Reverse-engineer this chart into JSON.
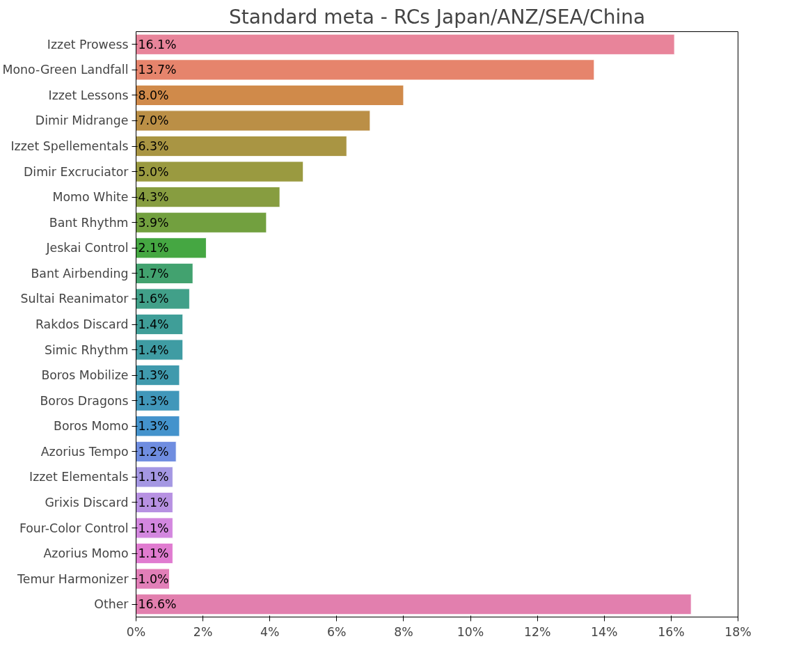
{
  "chart_data": {
    "type": "bar",
    "orientation": "horizontal",
    "title": "Standard meta - RCs Japan/ANZ/SEA/China",
    "categories": [
      "Izzet Prowess",
      "Mono-Green Landfall",
      "Izzet Lessons",
      "Dimir Midrange",
      "Izzet Spellementals",
      "Dimir Excruciator",
      "Momo White",
      "Bant Rhythm",
      "Jeskai Control",
      "Bant Airbending",
      "Sultai Reanimator",
      "Rakdos Discard",
      "Simic Rhythm",
      "Boros Mobilize",
      "Boros Dragons",
      "Boros Momo",
      "Azorius Tempo",
      "Izzet Elementals",
      "Grixis Discard",
      "Four-Color Control",
      "Azorius Momo",
      "Temur Harmonizer",
      "Other"
    ],
    "values": [
      16.1,
      13.7,
      8.0,
      7.0,
      6.3,
      5.0,
      4.3,
      3.9,
      2.1,
      1.7,
      1.6,
      1.4,
      1.4,
      1.3,
      1.3,
      1.3,
      1.2,
      1.1,
      1.1,
      1.1,
      1.1,
      1.0,
      16.6
    ],
    "value_labels": [
      "16.1%",
      "13.7%",
      "8.0%",
      "7.0%",
      "6.3%",
      "5.0%",
      "4.3%",
      "3.9%",
      "2.1%",
      "1.7%",
      "1.6%",
      "1.4%",
      "1.4%",
      "1.3%",
      "1.3%",
      "1.3%",
      "1.2%",
      "1.1%",
      "1.1%",
      "1.1%",
      "1.1%",
      "1.0%",
      "16.6%"
    ],
    "colors": [
      "#e8849a",
      "#e6846c",
      "#d08a4a",
      "#bb8f46",
      "#a99543",
      "#9a9a40",
      "#879d40",
      "#72a03f",
      "#45a742",
      "#42a26f",
      "#41a089",
      "#3f9e98",
      "#3f9ca3",
      "#409aad",
      "#4197ba",
      "#4493cc",
      "#6f8de0",
      "#a497e3",
      "#b791e2",
      "#d387df",
      "#e07bd0",
      "#e27fb8",
      "#e27fae"
    ],
    "xlim": [
      0,
      18
    ],
    "xticks": [
      {
        "value": 0,
        "label": "0%"
      },
      {
        "value": 2,
        "label": "2%"
      },
      {
        "value": 4,
        "label": "4%"
      },
      {
        "value": 6,
        "label": "6%"
      },
      {
        "value": 8,
        "label": "8%"
      },
      {
        "value": 10,
        "label": "10%"
      },
      {
        "value": 12,
        "label": "12%"
      },
      {
        "value": 14,
        "label": "14%"
      },
      {
        "value": 16,
        "label": "16%"
      },
      {
        "value": 18,
        "label": "18%"
      }
    ],
    "grid": false
  }
}
